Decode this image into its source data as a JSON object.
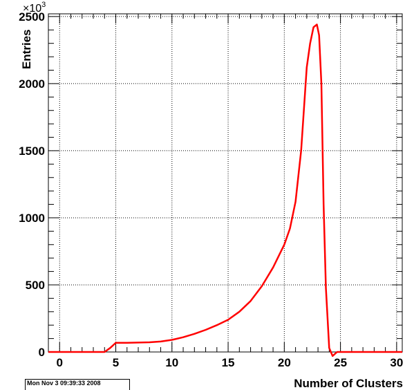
{
  "chart_data": {
    "type": "line",
    "xlabel": "Number of Clusters",
    "ylabel": "Entries",
    "y_multiplier_label": "×10",
    "y_multiplier_exp": "3",
    "xlim": [
      -1,
      30.5
    ],
    "ylim": [
      0,
      2520
    ],
    "xticks": [
      0,
      5,
      10,
      15,
      20,
      25,
      30
    ],
    "yticks": [
      0,
      500,
      1000,
      1500,
      2000,
      2500
    ],
    "grid": true,
    "legend": "none",
    "line_color": "#ff0000",
    "series": [
      {
        "x": [
          -1,
          0,
          1,
          2,
          3,
          3.5,
          4,
          4.5,
          5,
          5.5,
          6,
          7,
          8,
          9,
          10,
          11,
          12,
          13,
          14,
          15,
          16,
          17,
          18,
          19,
          20,
          20.5,
          21,
          21.5,
          22,
          22.3,
          22.6,
          22.9,
          23.1,
          23.3,
          23.5,
          23.7,
          24,
          24.3,
          24.7,
          25,
          26,
          27,
          28,
          29,
          30.5
        ],
        "y": [
          0,
          0,
          0,
          0,
          0,
          0,
          0,
          30,
          68,
          68,
          68,
          70,
          72,
          78,
          90,
          110,
          135,
          165,
          200,
          240,
          300,
          380,
          490,
          630,
          800,
          920,
          1120,
          1500,
          2120,
          2300,
          2420,
          2440,
          2360,
          2000,
          1100,
          480,
          30,
          -30,
          0,
          0,
          0,
          0,
          0,
          0,
          0
        ]
      }
    ]
  },
  "datestamp": "Mon Nov  3 09:39:33 2008"
}
